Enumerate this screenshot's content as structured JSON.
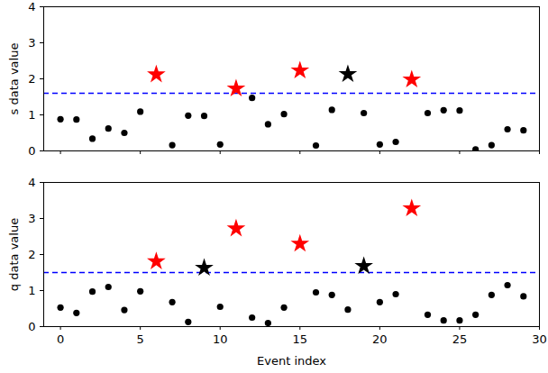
{
  "chart_data": [
    {
      "type": "scatter",
      "ylabel": "s data value",
      "tick_labels": "y",
      "x": [
        0,
        1,
        2,
        3,
        4,
        5,
        6,
        7,
        8,
        9,
        10,
        11,
        12,
        13,
        14,
        15,
        16,
        17,
        18,
        19,
        20,
        21,
        22,
        23,
        24,
        25,
        26,
        27,
        28,
        29
      ],
      "xlim": [
        -1.05,
        30
      ],
      "xticks": [
        0,
        5,
        10,
        15,
        20,
        25,
        30
      ],
      "ylim": [
        0,
        4
      ],
      "yticks": [
        0,
        1,
        2,
        3,
        4
      ],
      "series": [
        {
          "color": "#000000",
          "marker": "circle",
          "values": [
            0.88,
            0.87,
            0.34,
            0.62,
            0.5,
            1.09,
            null,
            0.16,
            0.98,
            0.97,
            0.18,
            null,
            1.47,
            0.74,
            1.02,
            null,
            0.15,
            1.14,
            null,
            1.05,
            0.18,
            0.25,
            null,
            1.05,
            1.13,
            1.12,
            0.04,
            0.16,
            0.6,
            0.57
          ]
        },
        {
          "color": "#ff0000",
          "marker": "star",
          "values": [
            null,
            null,
            null,
            null,
            null,
            null,
            2.12,
            null,
            null,
            null,
            null,
            1.73,
            null,
            null,
            null,
            2.23,
            null,
            null,
            null,
            null,
            null,
            null,
            1.98,
            null,
            null,
            null,
            null,
            null,
            null,
            null
          ]
        },
        {
          "color": "#000000",
          "marker": "star",
          "values": [
            null,
            null,
            null,
            null,
            null,
            null,
            null,
            null,
            null,
            null,
            null,
            null,
            null,
            null,
            null,
            null,
            null,
            null,
            2.13,
            null,
            null,
            null,
            null,
            null,
            null,
            null,
            null,
            null,
            null,
            null
          ]
        }
      ],
      "hline": {
        "value": 1.6,
        "color": "#0000ff",
        "line_style": "dashed"
      }
    },
    {
      "type": "scatter",
      "ylabel": "q data value",
      "xlabel": "Event index",
      "x": [
        0,
        1,
        2,
        3,
        4,
        5,
        6,
        7,
        8,
        9,
        10,
        11,
        12,
        13,
        14,
        15,
        16,
        17,
        18,
        19,
        20,
        21,
        22,
        23,
        24,
        25,
        26,
        27,
        28,
        29
      ],
      "xlim": [
        -1.05,
        30
      ],
      "xticks": [
        0,
        5,
        10,
        15,
        20,
        25,
        30
      ],
      "ylim": [
        0,
        4
      ],
      "yticks": [
        0,
        1,
        2,
        3,
        4
      ],
      "series": [
        {
          "color": "#000000",
          "marker": "circle",
          "values": [
            0.53,
            0.38,
            0.97,
            1.1,
            0.46,
            0.98,
            null,
            0.68,
            0.13,
            null,
            0.55,
            null,
            0.25,
            0.1,
            0.53,
            null,
            0.95,
            0.88,
            0.47,
            null,
            0.68,
            0.9,
            null,
            0.33,
            0.17,
            0.17,
            0.33,
            0.88,
            1.15,
            0.84
          ]
        },
        {
          "color": "#ff0000",
          "marker": "star",
          "values": [
            null,
            null,
            null,
            null,
            null,
            null,
            1.81,
            null,
            null,
            null,
            null,
            2.72,
            null,
            null,
            null,
            2.3,
            null,
            null,
            null,
            null,
            null,
            null,
            3.28,
            null,
            null,
            null,
            null,
            null,
            null,
            null
          ]
        },
        {
          "color": "#000000",
          "marker": "star",
          "values": [
            null,
            null,
            null,
            null,
            null,
            null,
            null,
            null,
            null,
            1.63,
            null,
            null,
            null,
            null,
            null,
            null,
            null,
            null,
            null,
            1.68,
            null,
            null,
            null,
            null,
            null,
            null,
            null,
            null,
            null,
            null
          ]
        }
      ],
      "hline": {
        "value": 1.5,
        "color": "#0000ff",
        "line_style": "dashed"
      }
    }
  ]
}
